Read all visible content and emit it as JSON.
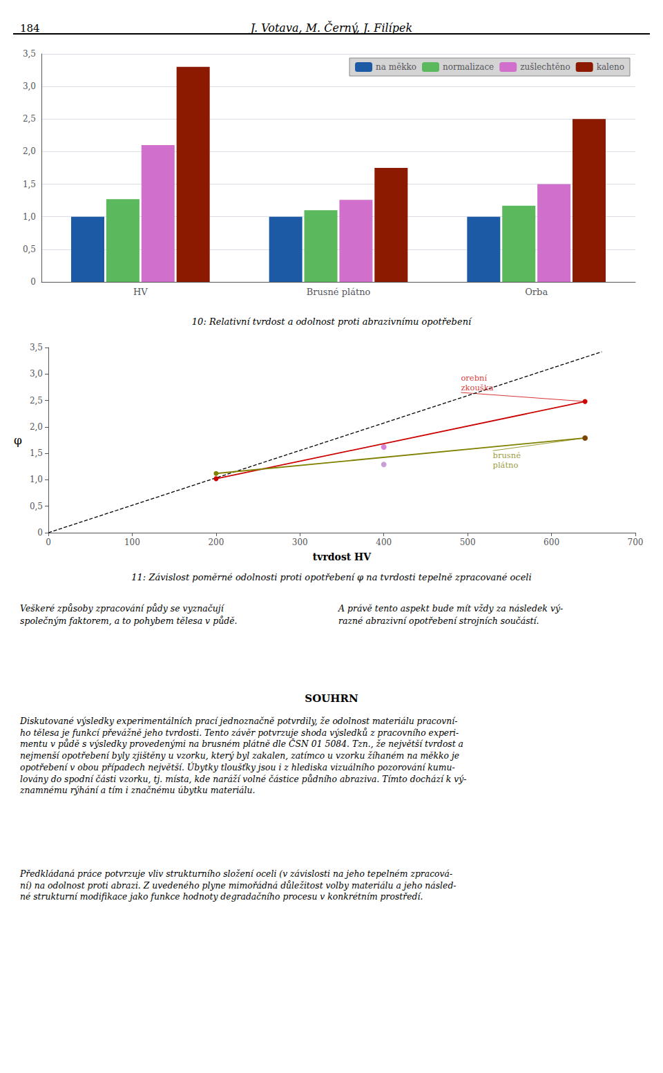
{
  "annotations": [
    "184",
    "J. Votava, M. Černý, J. Filípek",
    "Veškeré způsoby zpracování půdy se vyznačují\nspolečným faktorem, a to pohybem tělesa v půdě.",
    "A právě tento aspekt bude mít vždy za následek vý-\nrazné abrazivní opotřebení strojních součástí.",
    "SOUHRN",
    "Diskutované výsledky experimentálních prací jednoznačně potvrdily, že odolnost materiálu pracovní-\nho tělesa je funkcí převážně jeho tvrdosti. Tento závěr potvrzuje shoda výsledků z pracovního experi-\nmentu v půdě s výsledky provedenými na brusném plátně dle ČSN 01 5084. Tzn., že největší tvrdost a\nnejmenší opotřebení byly zjištěny u vzorku, který byl zakalen, zatímco u vzorku žíhaném na měkko je\nopotřebení v obou případech největší. Úbytky tloušťky jsou i z hlediska vizuálního pozorování kumu-\nlovány do spodní části vzorku, tj. místa, kde naráží volné částice půdního abraziva. Tímto dochází k vý-\nznamnému rýhání a tím i značnému úbytku materiálu.",
    "Předkládaná práce potvrzuje vliv strukturního složení oceli (v závislosti na jeho tepelném zpracová-\nní) na odolnost proti abrazi. Z uvedeného plyne mimořádná důležitost volby materiálu a jeho násled-\nné strukturní modifikace jako funkce hodnoty degradačního procesu v konkrétním prostředí."
  ],
  "chart_data": [
    {
      "type": "bar",
      "title": "10: Relativní tvrdost a odolnost proti abrazivnímu opotřebení",
      "categories": [
        "HV",
        "Brusné plátno",
        "Orba"
      ],
      "series": [
        {
          "name": "na měkko",
          "color": "#1c5aa6",
          "values": [
            1.0,
            1.0,
            1.0
          ]
        },
        {
          "name": "normalizace",
          "color": "#5cb85c",
          "values": [
            1.27,
            1.1,
            1.17
          ]
        },
        {
          "name": "zušlechtěno",
          "color": "#d070cc",
          "values": [
            2.1,
            1.26,
            1.5
          ]
        },
        {
          "name": "kaleno",
          "color": "#8b1a00",
          "values": [
            3.3,
            1.75,
            2.5
          ]
        }
      ],
      "ylim": [
        0,
        3.5
      ],
      "yticks": [
        0,
        {
          "value": 0.5,
          "label": "0,5"
        },
        {
          "value": 1.0,
          "label": "1,0"
        },
        {
          "value": 1.5,
          "label": "1,5"
        },
        {
          "value": 2.0,
          "label": "2,0"
        },
        {
          "value": 2.5,
          "label": "2,5"
        },
        {
          "value": 3.0,
          "label": "3,0"
        },
        {
          "value": 3.5,
          "label": "3,5"
        }
      ],
      "grid": true,
      "legend": "upper right"
    },
    {
      "type": "line",
      "title": "11: Závislost poměrné odolnosti proti opotřebení φ na tvrdosti tepelně zpracované oceli",
      "xlabel": "tvrdost HV",
      "ylabel": "φ",
      "series": [
        {
          "type": "line",
          "color": "#000000",
          "line_style": "dashed",
          "x": [
            0,
            660
          ],
          "values": [
            0,
            3.42
          ]
        },
        {
          "type": "line",
          "color": "#cc0000",
          "line_style": "solid",
          "marker": "circle",
          "x": [
            200,
            640
          ],
          "values": [
            1.02,
            2.48
          ]
        },
        {
          "type": "scatter",
          "color": "#cc66cc",
          "marker": "circle",
          "x": [
            400
          ],
          "values": [
            1.62
          ]
        },
        {
          "type": "line",
          "color": "#808000",
          "line_style": "solid",
          "marker": "circle",
          "x": [
            200,
            640
          ],
          "values": [
            1.12,
            1.79
          ]
        },
        {
          "type": "scatter",
          "color": "#bb88cc",
          "marker": "circle",
          "x": [
            400
          ],
          "values": [
            1.29
          ]
        },
        {
          "type": "scatter",
          "color": "#7a3500",
          "marker": "circle",
          "x": [
            640
          ],
          "values": [
            1.79
          ]
        }
      ],
      "annotations": [
        {
          "text": "orební\nzkouška",
          "x": 492,
          "y": 2.65,
          "xy": [
            640,
            2.48
          ],
          "color": "#cc0000"
        },
        {
          "text": "brusné\nplátno",
          "x": 530,
          "y": 1.55,
          "xy": [
            640,
            1.79
          ],
          "color": "#808000"
        }
      ],
      "xlim": [
        0,
        700
      ],
      "xticks": [
        0,
        100,
        200,
        300,
        400,
        500,
        600,
        700
      ],
      "ylim": [
        0,
        3.5
      ],
      "yticks": [
        0,
        {
          "value": 0.5,
          "label": "0,5"
        },
        {
          "value": 1.0,
          "label": "1,0"
        },
        {
          "value": 1.5,
          "label": "1,5"
        },
        {
          "value": 2.0,
          "label": "2,0"
        },
        {
          "value": 2.5,
          "label": "2,5"
        },
        {
          "value": 3.0,
          "label": "3,0"
        },
        {
          "value": 3.5,
          "label": "3,5"
        }
      ],
      "grid": false
    }
  ]
}
